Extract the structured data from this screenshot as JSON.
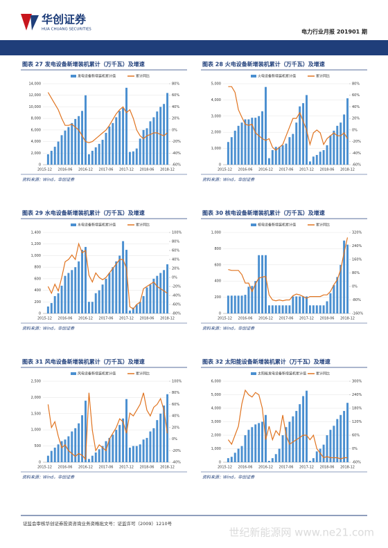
{
  "header": {
    "logo": "华创证券",
    "logo_en": "HUA CHUANG SECURITIES",
    "report": "电力行业月报 201901 期"
  },
  "footer": "证监会审核华创证券投资咨询业务资格批文号：证监许可（2009）1210号",
  "watermark": "世纪新能源网 www.ne21.com",
  "chart_data": [
    {
      "type": "bar-line",
      "title": "图表 27  发电设备新增装机累计（万千瓦）及增速",
      "source": "资料来源：Wind，华创证券",
      "categories": [
        "2015-12",
        null,
        null,
        null,
        null,
        null,
        "2016-06",
        null,
        null,
        null,
        null,
        null,
        "2016-12",
        null,
        null,
        null,
        null,
        null,
        "2017-06",
        null,
        null,
        null,
        null,
        null,
        "2017-12",
        null,
        null,
        null,
        null,
        null,
        "2018-06",
        null,
        null,
        null,
        null,
        null,
        "2018-12"
      ],
      "series": [
        {
          "name": "发电设备新增装机累计值",
          "color": "#4a8fd0",
          "values": [
            null,
            1800,
            2400,
            3100,
            4000,
            5100,
            5900,
            6500,
            7200,
            7900,
            8400,
            9300,
            12000,
            1800,
            2400,
            3000,
            3600,
            4300,
            5500,
            6600,
            7200,
            8200,
            9300,
            9800,
            13300,
            2200,
            2300,
            2800,
            4500,
            6000,
            6300,
            7500,
            8200,
            9200,
            10000,
            10500,
            12400
          ]
        },
        {
          "name": "累计同比",
          "color": "#e0731f",
          "axis": "y2",
          "values": [
            null,
            65,
            55,
            45,
            35,
            20,
            8,
            8,
            10,
            5,
            0,
            -10,
            -20,
            -22,
            -20,
            -15,
            -10,
            -5,
            0,
            8,
            18,
            28,
            35,
            40,
            30,
            35,
            20,
            0,
            -10,
            -15,
            -10,
            -8,
            -5,
            -5,
            -8,
            -10,
            -5
          ]
        }
      ],
      "ylim": [
        0,
        14000
      ],
      "yticks": [
        0,
        {
          "value": 2000,
          "label": "2,000"
        },
        {
          "value": 4000,
          "label": "4,000"
        },
        {
          "value": 6000,
          "label": "6,000"
        },
        {
          "value": 8000,
          "label": "8,000"
        },
        {
          "value": 10000,
          "label": "10,000"
        },
        {
          "value": 12000,
          "label": "12,000"
        },
        {
          "value": 14000,
          "label": "14,000"
        }
      ],
      "y2lim": [
        -60,
        80
      ],
      "y2ticks": [
        {
          "value": -60,
          "label": "-60%"
        },
        {
          "value": -40,
          "label": "-40%"
        },
        {
          "value": -20,
          "label": "-20%"
        },
        {
          "value": 0,
          "label": "0%"
        },
        {
          "value": 20,
          "label": "20%"
        },
        {
          "value": 40,
          "label": "40%"
        },
        {
          "value": 60,
          "label": "60%"
        },
        {
          "value": 80,
          "label": "80%"
        }
      ]
    },
    {
      "type": "bar-line",
      "title": "图表 28  火电设备新增装机累计（万千瓦）及增速",
      "source": "资料来源：Wind，华创证券",
      "categories": [
        "2015-12",
        null,
        null,
        null,
        null,
        null,
        "2016-06",
        null,
        null,
        null,
        null,
        null,
        "2016-12",
        null,
        null,
        null,
        null,
        null,
        "2017-06",
        null,
        null,
        null,
        null,
        null,
        "2017-12",
        null,
        null,
        null,
        null,
        null,
        "2018-06",
        null,
        null,
        null,
        null,
        null,
        "2018-12"
      ],
      "series": [
        {
          "name": "火电设备新增装机累计值",
          "color": "#4a8fd0",
          "values": [
            null,
            1400,
            1700,
            2100,
            2400,
            2600,
            2800,
            2800,
            2900,
            2900,
            3000,
            3300,
            4800,
            400,
            900,
            1100,
            1100,
            1200,
            1300,
            1700,
            1900,
            2600,
            3600,
            3800,
            4300,
            200,
            500,
            600,
            800,
            900,
            1200,
            1800,
            2100,
            2400,
            2600,
            3100,
            4100
          ]
        },
        {
          "name": "累计同比",
          "color": "#e0731f",
          "axis": "y2",
          "values": [
            null,
            75,
            75,
            65,
            35,
            22,
            10,
            8,
            10,
            -5,
            -10,
            -15,
            -18,
            -15,
            -30,
            -35,
            -30,
            -25,
            -10,
            5,
            20,
            20,
            30,
            15,
            0,
            -25,
            -5,
            0,
            -5,
            -25,
            -15,
            -10,
            -5,
            -10,
            -10,
            -5,
            -15
          ]
        }
      ],
      "ylim": [
        0,
        5000
      ],
      "yticks": [
        0,
        {
          "value": 1000,
          "label": "1,000"
        },
        {
          "value": 2000,
          "label": "2,000"
        },
        {
          "value": 3000,
          "label": "3,000"
        },
        {
          "value": 4000,
          "label": "4,000"
        },
        {
          "value": 5000,
          "label": "5,000"
        }
      ],
      "y2lim": [
        -60,
        80
      ],
      "y2ticks": [
        {
          "value": -60,
          "label": "-60%"
        },
        {
          "value": -40,
          "label": "-40%"
        },
        {
          "value": -20,
          "label": "-20%"
        },
        {
          "value": 0,
          "label": "0%"
        },
        {
          "value": 20,
          "label": "20%"
        },
        {
          "value": 40,
          "label": "40%"
        },
        {
          "value": 60,
          "label": "60%"
        },
        {
          "value": 80,
          "label": "80%"
        }
      ]
    },
    {
      "type": "bar-line",
      "title": "图表 29  水电设备新增装机累计（万千瓦）及增速",
      "source": "资料来源：Wind，华创证券",
      "categories": [
        "2015-12",
        null,
        null,
        null,
        null,
        null,
        "2016-06",
        null,
        null,
        null,
        null,
        null,
        "2016-12",
        null,
        null,
        null,
        null,
        null,
        "2017-06",
        null,
        null,
        null,
        null,
        null,
        "2017-12",
        null,
        null,
        null,
        null,
        null,
        "2018-06",
        null,
        null,
        null,
        null,
        null,
        "2018-12"
      ],
      "series": [
        {
          "name": "水电设备新增装机累计值",
          "color": "#4a8fd0",
          "values": [
            null,
            120,
            180,
            300,
            350,
            480,
            650,
            700,
            750,
            800,
            900,
            1100,
            1150,
            200,
            200,
            350,
            400,
            500,
            600,
            700,
            800,
            900,
            1000,
            1250,
            1100,
            50,
            100,
            150,
            200,
            300,
            450,
            500,
            600,
            650,
            700,
            750,
            850
          ]
        },
        {
          "name": "累计同比",
          "color": "#e0731f",
          "axis": "y2",
          "values": [
            null,
            -20,
            -35,
            -15,
            -30,
            0,
            35,
            40,
            50,
            40,
            75,
            55,
            60,
            5,
            -10,
            10,
            0,
            -5,
            0,
            10,
            20,
            30,
            40,
            40,
            20,
            -65,
            -70,
            -60,
            -55,
            -25,
            -20,
            -15,
            -10,
            -20,
            -25,
            -30,
            -35
          ]
        }
      ],
      "ylim": [
        0,
        1400
      ],
      "yticks": [
        0,
        200,
        400,
        600,
        800,
        {
          "value": 1000,
          "label": "1,000"
        },
        {
          "value": 1200,
          "label": "1,200"
        },
        {
          "value": 1400,
          "label": "1,400"
        }
      ],
      "y2lim": [
        -80,
        100
      ],
      "y2ticks": [
        {
          "value": -80,
          "label": "-80%"
        },
        {
          "value": -60,
          "label": "-60%"
        },
        {
          "value": -40,
          "label": "-40%"
        },
        {
          "value": -20,
          "label": "-20%"
        },
        {
          "value": 0,
          "label": "0%"
        },
        {
          "value": 20,
          "label": "20%"
        },
        {
          "value": 40,
          "label": "40%"
        },
        {
          "value": 60,
          "label": "60%"
        },
        {
          "value": 80,
          "label": "80%"
        },
        {
          "value": 100,
          "label": "100%"
        }
      ]
    },
    {
      "type": "bar-line",
      "title": "图表 30  核电设备新增装机累计（万千瓦）及增速",
      "source": "资料来源：Wind，华创证券",
      "categories": [
        "2015-12",
        null,
        null,
        null,
        null,
        null,
        "2016-06",
        null,
        null,
        null,
        null,
        null,
        "2016-12",
        null,
        null,
        null,
        null,
        null,
        "2017-06",
        null,
        null,
        null,
        null,
        null,
        "2017-12",
        null,
        null,
        null,
        null,
        null,
        "2018-06",
        null,
        null,
        null,
        null,
        null,
        "2018-12"
      ],
      "series": [
        {
          "name": "核电设备新增装机累计值",
          "color": "#4a8fd0",
          "values": [
            null,
            220,
            220,
            220,
            220,
            220,
            230,
            330,
            340,
            400,
            720,
            720,
            720,
            100,
            100,
            100,
            100,
            100,
            100,
            100,
            210,
            210,
            210,
            210,
            210,
            100,
            100,
            100,
            100,
            100,
            150,
            250,
            350,
            450,
            600,
            900,
            850
          ]
        },
        {
          "name": "累计同比",
          "color": "#e0731f",
          "axis": "y2",
          "values": [
            null,
            100,
            95,
            95,
            95,
            70,
            20,
            20,
            -30,
            15,
            50,
            55,
            60,
            -50,
            -80,
            -85,
            -80,
            -85,
            -80,
            -80,
            -55,
            -45,
            -50,
            -60,
            -70,
            -60,
            -60,
            -60,
            -60,
            -50,
            -50,
            -30,
            10,
            40,
            100,
            200,
            290
          ]
        }
      ],
      "ylim": [
        0,
        1000
      ],
      "yticks": [
        0,
        200,
        400,
        600,
        800,
        {
          "value": 1000,
          "label": "1,000"
        }
      ],
      "y2lim": [
        -160,
        320
      ],
      "y2ticks": [
        {
          "value": -160,
          "label": "-160%"
        },
        {
          "value": -80,
          "label": "-80%"
        },
        {
          "value": 0,
          "label": "0%"
        },
        {
          "value": 80,
          "label": "80%"
        },
        {
          "value": 160,
          "label": "160%"
        },
        {
          "value": 240,
          "label": "240%"
        },
        {
          "value": 320,
          "label": "320%"
        }
      ]
    },
    {
      "type": "bar-line",
      "title": "图表 31  风电设备新增装机累计（万千瓦）及增速",
      "source": "资料来源：Wind，华创证券",
      "categories": [
        "2015-12",
        null,
        null,
        null,
        null,
        null,
        "2016-06",
        null,
        null,
        null,
        null,
        null,
        "2016-12",
        null,
        null,
        null,
        null,
        null,
        "2017-06",
        null,
        null,
        null,
        null,
        null,
        "2017-12",
        null,
        null,
        null,
        null,
        null,
        "2018-06",
        null,
        null,
        null,
        null,
        null,
        "2018-12"
      ],
      "series": [
        {
          "name": "风电设备新增装机累计值",
          "color": "#4a8fd0",
          "values": [
            null,
            200,
            350,
            450,
            550,
            650,
            700,
            800,
            950,
            1050,
            1200,
            1450,
            1900,
            100,
            200,
            300,
            400,
            500,
            650,
            750,
            850,
            1000,
            1150,
            1350,
            1950,
            450,
            500,
            500,
            550,
            700,
            750,
            950,
            1050,
            1300,
            1500,
            1750,
            2100
          ]
        },
        {
          "name": "累计同比",
          "color": "#e0731f",
          "axis": "y2",
          "values": [
            null,
            60,
            20,
            30,
            5,
            -15,
            -10,
            -20,
            -25,
            -30,
            -25,
            -28,
            -35,
            80,
            15,
            -20,
            -10,
            -15,
            -20,
            0,
            10,
            20,
            35,
            30,
            10,
            45,
            40,
            50,
            60,
            80,
            50,
            40,
            55,
            60,
            70,
            50,
            10
          ]
        }
      ],
      "ylim": [
        0,
        2500
      ],
      "yticks": [
        0,
        500,
        {
          "value": 1000,
          "label": "1,000"
        },
        {
          "value": 1500,
          "label": "1,500"
        },
        {
          "value": 2000,
          "label": "2,000"
        },
        {
          "value": 2500,
          "label": "2,500"
        }
      ],
      "y2lim": [
        -40,
        100
      ],
      "y2ticks": [
        {
          "value": -40,
          "label": "-40%"
        },
        {
          "value": -20,
          "label": "-20%"
        },
        {
          "value": 0,
          "label": "0%"
        },
        {
          "value": 20,
          "label": "20%"
        },
        {
          "value": 40,
          "label": "40%"
        },
        {
          "value": 60,
          "label": "60%"
        },
        {
          "value": 80,
          "label": "80%"
        },
        {
          "value": 100,
          "label": "100%"
        }
      ]
    },
    {
      "type": "bar-line",
      "title": "图表 32  太阳能设备新增装机累计（万千瓦）及增速",
      "source": "资料来源：Wind，华创证券",
      "categories": [
        "2015-12",
        null,
        null,
        null,
        null,
        null,
        "2016-06",
        null,
        null,
        null,
        null,
        null,
        "2016-12",
        null,
        null,
        null,
        null,
        null,
        "2017-06",
        null,
        null,
        null,
        null,
        null,
        "2017-12",
        null,
        null,
        null,
        null,
        null,
        "2018-06",
        null,
        null,
        null,
        null,
        null,
        "2018-12"
      ],
      "series": [
        {
          "name": "太阳能发电设备新增装机累计值",
          "color": "#4a8fd0",
          "values": [
            null,
            300,
            400,
            700,
            1000,
            1200,
            2000,
            2400,
            2600,
            2800,
            2900,
            3000,
            3500,
            100,
            300,
            600,
            1000,
            2000,
            2600,
            3000,
            3400,
            3800,
            4300,
            4900,
            5300,
            100,
            300,
            800,
            1000,
            1300,
            2000,
            2400,
            2700,
            3200,
            3500,
            3800,
            4400
          ]
        },
        {
          "name": "累计同比",
          "color": "#e0731f",
          "axis": "y2",
          "values": [
            null,
            40,
            20,
            60,
            100,
            200,
            260,
            240,
            230,
            250,
            240,
            180,
            40,
            100,
            40,
            80,
            60,
            150,
            60,
            20,
            30,
            40,
            50,
            60,
            60,
            40,
            60,
            0,
            -20,
            -40,
            -35,
            -40,
            -40,
            -40,
            -45,
            -40,
            -40
          ]
        }
      ],
      "ylim": [
        0,
        6000
      ],
      "yticks": [
        0,
        {
          "value": 1000,
          "label": "1,000"
        },
        {
          "value": 2000,
          "label": "2,000"
        },
        {
          "value": 3000,
          "label": "3,000"
        },
        {
          "value": 4000,
          "label": "4,000"
        },
        {
          "value": 5000,
          "label": "5,000"
        },
        {
          "value": 6000,
          "label": "6,000"
        }
      ],
      "y2lim": [
        -60,
        300
      ],
      "y2ticks": [
        {
          "value": -60,
          "label": "-60%"
        },
        {
          "value": 0,
          "label": "0%"
        },
        {
          "value": 60,
          "label": "60%"
        },
        {
          "value": 120,
          "label": "120%"
        },
        {
          "value": 180,
          "label": "180%"
        },
        {
          "value": 240,
          "label": "240%"
        },
        {
          "value": 300,
          "label": "300%"
        }
      ]
    }
  ]
}
